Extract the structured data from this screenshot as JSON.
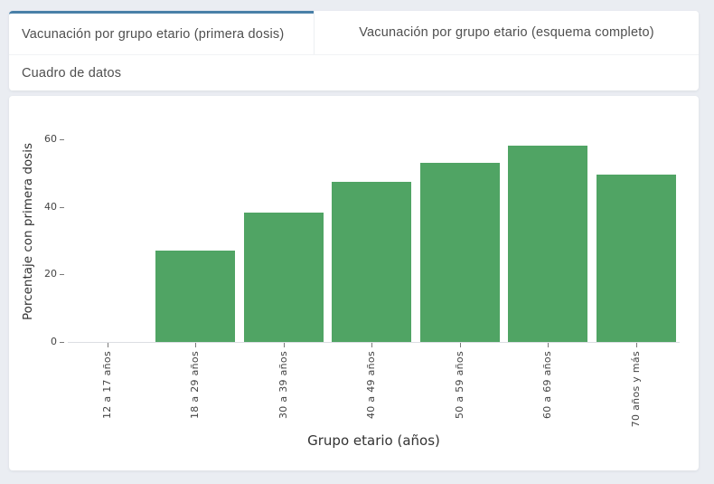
{
  "colors": {
    "accent": "#4a80a8",
    "bar": "#50a464",
    "page_background": "#eaedf2",
    "card_background": "#ffffff",
    "tick_text": "#444444"
  },
  "tabs": [
    {
      "label": "Vacunación por grupo etario (primera dosis)",
      "active": true
    },
    {
      "label": "Vacunación por grupo etario (esquema completo)",
      "active": false
    },
    {
      "label": "Cuadro de datos",
      "active": false
    }
  ],
  "chart_data": {
    "type": "bar",
    "title": "",
    "xlabel": "Grupo etario (años)",
    "ylabel": "Porcentaje con primera dosis",
    "categories": [
      "12 a 17 años",
      "18 a 29 años",
      "30 a 39 años",
      "40 a 49 años",
      "50 a 59 años",
      "60 a 69 años",
      "70 años y más"
    ],
    "values": [
      0,
      27,
      38.3,
      47.4,
      53.1,
      58.2,
      49.6
    ],
    "yticks": [
      0,
      20,
      40,
      60
    ],
    "ylim": [
      0,
      66.5
    ],
    "grid": false,
    "legend": false,
    "bar_color": "#50a464"
  }
}
